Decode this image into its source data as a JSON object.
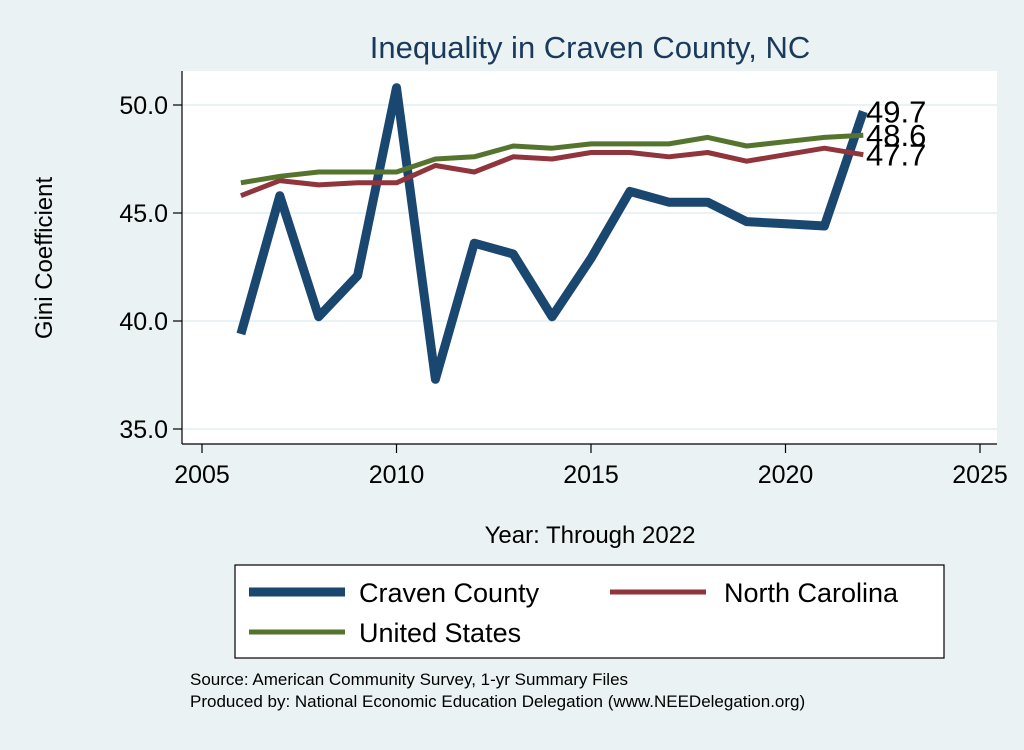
{
  "chart_data": {
    "type": "line",
    "title": "Inequality in Craven County, NC",
    "xlabel": "Year: Through 2022",
    "ylabel": "Gini Coefficient",
    "xlim": [
      2005,
      2025
    ],
    "ylim": [
      35,
      51.5
    ],
    "xticks": [
      2005,
      2010,
      2015,
      2020,
      2025
    ],
    "yticks": [
      35,
      40,
      45,
      50
    ],
    "ytick_labels": [
      "35.0",
      "40.0",
      "45.0",
      "50.0"
    ],
    "grid": true,
    "x": [
      2006,
      2007,
      2008,
      2009,
      2010,
      2011,
      2012,
      2013,
      2014,
      2015,
      2016,
      2017,
      2018,
      2019,
      2020,
      2021,
      2022
    ],
    "series": [
      {
        "name": "Craven County",
        "color": "#1a476f",
        "values": [
          39.4,
          45.8,
          40.2,
          42.1,
          50.8,
          37.3,
          43.6,
          43.1,
          40.2,
          42.9,
          46.0,
          45.5,
          45.5,
          44.6,
          44.5,
          44.4,
          49.7
        ],
        "end_label": "49.7"
      },
      {
        "name": "North Carolina",
        "color": "#90353b",
        "values": [
          45.8,
          46.5,
          46.3,
          46.4,
          46.4,
          47.2,
          46.9,
          47.6,
          47.5,
          47.8,
          47.8,
          47.6,
          47.8,
          47.4,
          47.7,
          48.0,
          47.7
        ],
        "end_label": "47.7"
      },
      {
        "name": "United States",
        "color": "#55752f",
        "values": [
          46.4,
          46.7,
          46.9,
          46.9,
          46.9,
          47.5,
          47.6,
          48.1,
          48.0,
          48.2,
          48.2,
          48.2,
          48.5,
          48.1,
          48.3,
          48.5,
          48.6
        ],
        "end_label": "48.6"
      }
    ],
    "legend_position": "bottom",
    "notes": [
      "Source: American Community Survey, 1-yr Summary Files",
      "Produced by: National Economic Education Delegation (www.NEEDelegation.org)"
    ]
  }
}
